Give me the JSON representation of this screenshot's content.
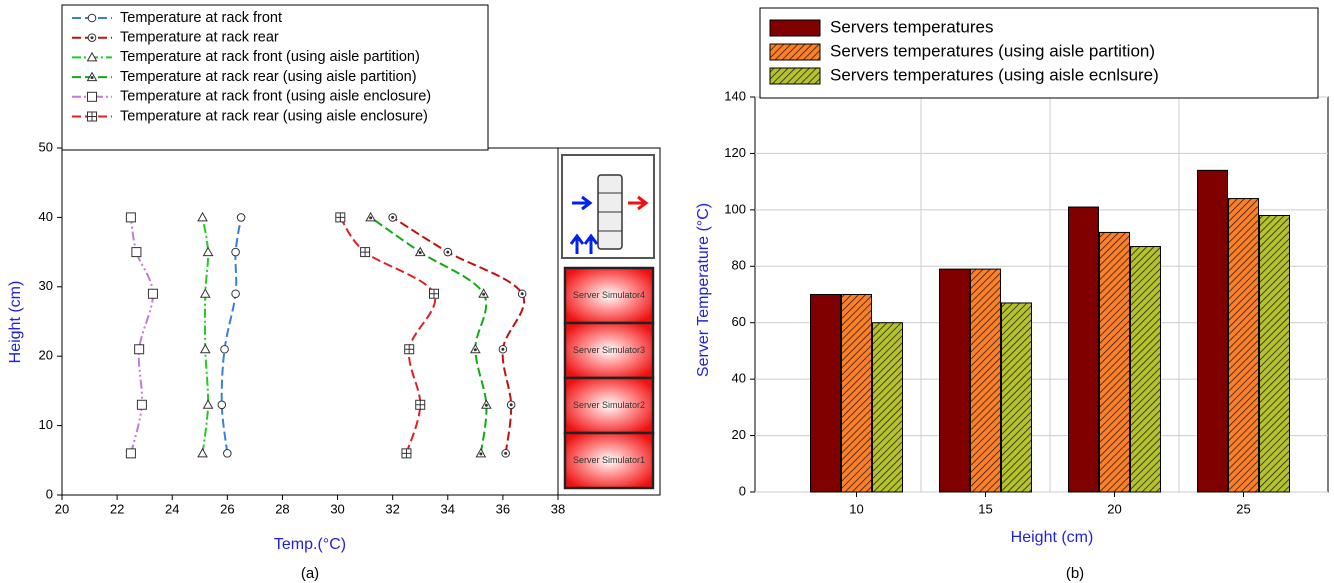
{
  "chart_data": [
    {
      "type": "line",
      "x_label": "Temp.(°C)",
      "y_label": "Height (cm)",
      "caption": "(a)",
      "xlim": [
        20,
        38
      ],
      "xticks": [
        20,
        22,
        24,
        26,
        28,
        30,
        32,
        34,
        36,
        38
      ],
      "ylim": [
        0,
        50
      ],
      "yticks": [
        0,
        10,
        20,
        30,
        40,
        50
      ],
      "grid": false,
      "legend": "top-left",
      "annotations": [
        "Server Simulator4",
        "Server Simulator3",
        "Server Simulator2",
        "Server Simulator1"
      ],
      "series": [
        {
          "name": "Temperature at rack front",
          "color": "#3a7ee0",
          "linestyle": "dashed",
          "marker": "circle",
          "x": [
            26.0,
            25.8,
            25.9,
            26.3,
            26.3,
            26.5
          ],
          "y": [
            6,
            13,
            21,
            29,
            35,
            40
          ]
        },
        {
          "name": "Temperature at rack rear",
          "color": "#c01010",
          "linestyle": "dashed",
          "marker": "circle-dot",
          "x": [
            36.1,
            36.3,
            36.0,
            36.7,
            34.0,
            32.0
          ],
          "y": [
            6,
            13,
            21,
            29,
            35,
            40
          ]
        },
        {
          "name": "Temperature at rack front (using aisle partition)",
          "color": "#22cc22",
          "linestyle": "dashdot",
          "marker": "triangle",
          "x": [
            25.1,
            25.3,
            25.2,
            25.2,
            25.3,
            25.1
          ],
          "y": [
            6,
            13,
            21,
            29,
            35,
            40
          ]
        },
        {
          "name": "Temperature at rack rear (using aisle partition)",
          "color": "#11aa11",
          "linestyle": "dashed",
          "marker": "triangle-dot",
          "x": [
            35.2,
            35.4,
            35.0,
            35.3,
            33.0,
            31.2
          ],
          "y": [
            6,
            13,
            21,
            29,
            35,
            40
          ]
        },
        {
          "name": "Temperature at rack front (using aisle enclosure)",
          "color": "#c07ae0",
          "linestyle": "dashdotdot",
          "marker": "square",
          "x": [
            22.5,
            22.9,
            22.8,
            23.3,
            22.7,
            22.5
          ],
          "y": [
            6,
            13,
            21,
            29,
            35,
            40
          ]
        },
        {
          "name": "Temperature at rack rear (using aisle enclosure)",
          "color": "#e02020",
          "linestyle": "dashed",
          "marker": "square-cross",
          "x": [
            32.5,
            33.0,
            32.6,
            33.5,
            31.0,
            30.1
          ],
          "y": [
            6,
            13,
            21,
            29,
            35,
            40
          ]
        }
      ]
    },
    {
      "type": "bar",
      "x_label": "Height (cm)",
      "y_label": "Server Temperature (°C)",
      "caption": "(b)",
      "categories": [
        "10",
        "15",
        "20",
        "25"
      ],
      "ylim": [
        0,
        140
      ],
      "yticks": [
        0,
        20,
        40,
        60,
        80,
        100,
        120,
        140
      ],
      "grid": true,
      "legend": "top-left",
      "series": [
        {
          "name": "Servers temperatures",
          "color": "#800000",
          "hatch": false,
          "values": [
            70,
            79,
            101,
            114
          ]
        },
        {
          "name": "Servers temperatures (using aisle partition)",
          "color": "#ff7f27",
          "hatch": true,
          "values": [
            70,
            79,
            92,
            104
          ]
        },
        {
          "name": "Servers temperatures (using aisle ecnlsure)",
          "color": "#b5c22a",
          "hatch": true,
          "values": [
            60,
            67,
            87,
            98
          ]
        }
      ]
    }
  ]
}
